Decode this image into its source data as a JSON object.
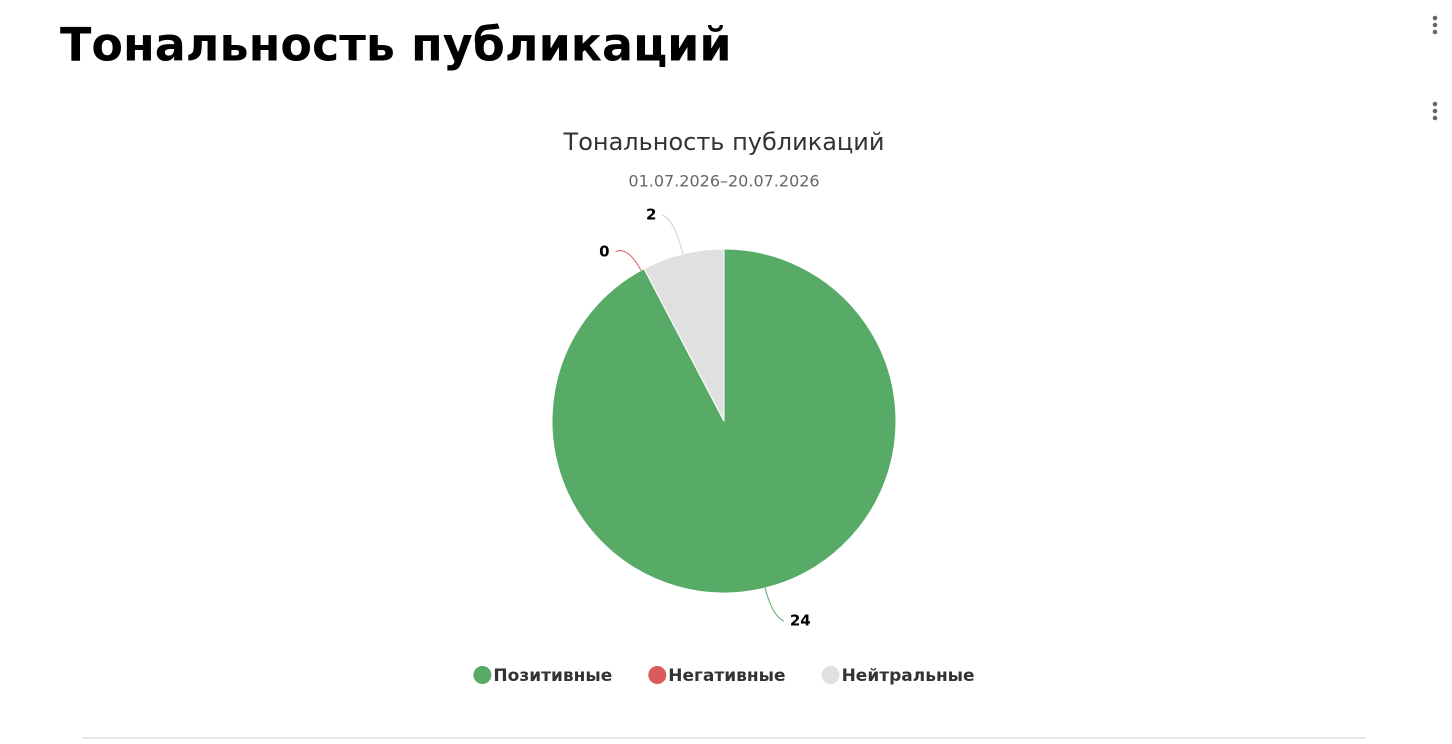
{
  "header": {
    "title": "Тональность публикаций"
  },
  "chart_data": {
    "type": "pie",
    "title": "Тональность публикаций",
    "subtitle": "01.07.2026–20.07.2026",
    "categories": [
      "Позитивные",
      "Негативные",
      "Нейтральные"
    ],
    "values": [
      24,
      0,
      2
    ],
    "colors": [
      "#57ab67",
      "#d95b5b",
      "#e0e0e0"
    ],
    "legend": "bottom"
  }
}
